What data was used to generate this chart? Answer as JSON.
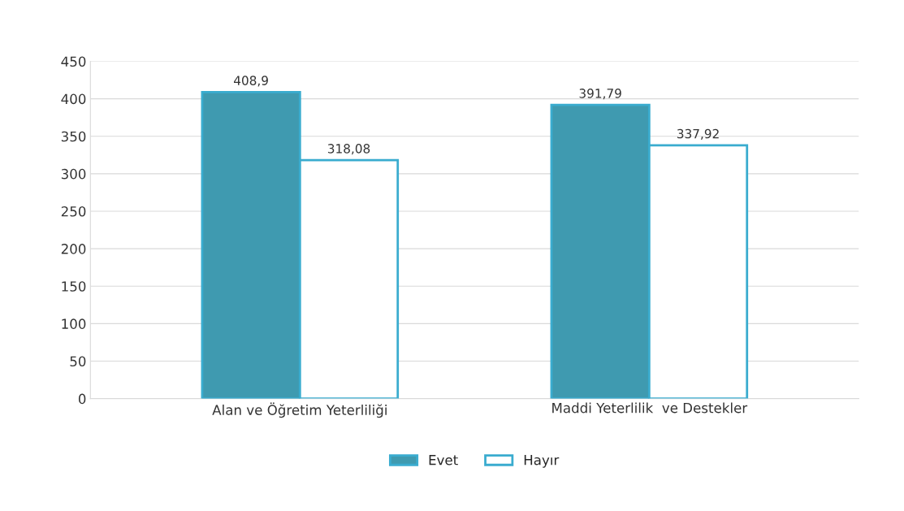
{
  "chart_data": {
    "type": "bar",
    "categories": [
      "Alan ve Öğretim Yeterliliği",
      "Maddi Yeterlilik  ve Destekler"
    ],
    "series": [
      {
        "name": "Evet",
        "color": "#3f9ab0",
        "values": [
          408.9,
          391.79
        ],
        "value_labels": [
          "408,9",
          "391,79"
        ]
      },
      {
        "name": "Hayır",
        "color": "#ffffff",
        "values": [
          318.08,
          337.92
        ],
        "value_labels": [
          "318,08",
          "337,92"
        ]
      }
    ],
    "ylim": [
      0,
      450
    ],
    "yticks": [
      0,
      50,
      100,
      150,
      200,
      250,
      300,
      350,
      400,
      450
    ],
    "grid": "y",
    "legend": "bottom"
  }
}
